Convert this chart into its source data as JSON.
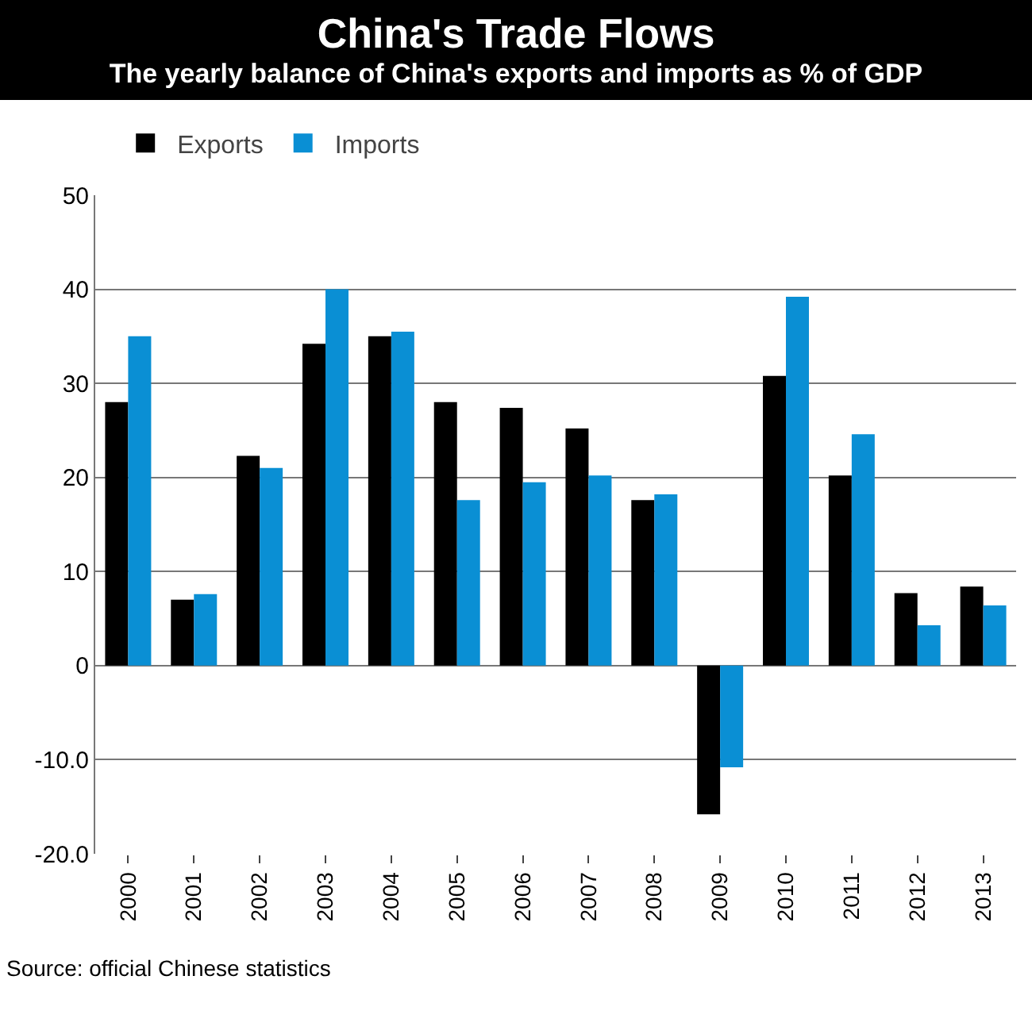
{
  "chart_data": {
    "type": "bar",
    "title": "China's Trade Flows",
    "subtitle": "The yearly balance of China's exports and imports as % of GDP",
    "categories": [
      "2000",
      "2001",
      "2002",
      "2003",
      "2004",
      "2005",
      "2006",
      "2007",
      "2008",
      "2009",
      "2010",
      "2011",
      "2012",
      "2013"
    ],
    "series": [
      {
        "name": "Exports",
        "color": "#000000",
        "values": [
          28,
          7,
          22.3,
          34.2,
          35,
          28,
          27.4,
          25.2,
          17.6,
          -15.8,
          30.8,
          20.2,
          7.7,
          8.4
        ]
      },
      {
        "name": "Imports",
        "color": "#0a8fd4",
        "values": [
          35,
          7.6,
          21,
          40,
          35.5,
          17.6,
          19.5,
          20.2,
          18.2,
          -10.8,
          39.2,
          24.6,
          4.3,
          6.4
        ]
      }
    ],
    "ylim": [
      -20,
      50
    ],
    "yticks": [
      {
        "value": -20,
        "label": "-20.0"
      },
      {
        "value": -10,
        "label": "-10.0"
      },
      0,
      10,
      20,
      30,
      40,
      50
    ],
    "grid": "y",
    "legend": "top left",
    "annotations": [
      "Source: official Chinese statistics"
    ]
  }
}
